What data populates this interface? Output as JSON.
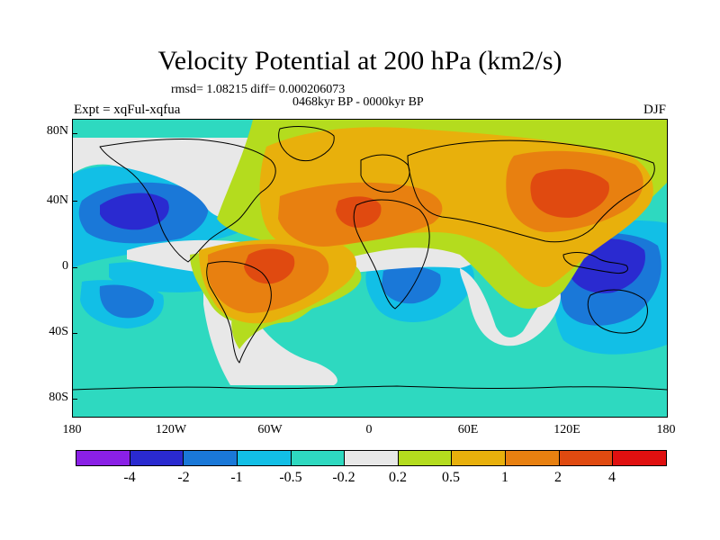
{
  "title": "Velocity Potential at 200 hPa (km2/s)",
  "stats": "rmsd= 1.08215 diff= 0.000206073",
  "period": "0468kyr BP - 0000kyr BP",
  "experiment": "Expt = xqFul-xqfua",
  "season": "DJF",
  "lat_labels": [
    "80N",
    "40N",
    "0",
    "40S",
    "80S"
  ],
  "lon_labels": [
    "180",
    "120W",
    "60W",
    "0",
    "60E",
    "120E",
    "180"
  ],
  "colorbar": {
    "colors": [
      "#8a20e6",
      "#2a2ad0",
      "#1a78d8",
      "#12bfe6",
      "#2ed9c0",
      "#e8e8e8",
      "#b4dc1e",
      "#e8b00c",
      "#e88010",
      "#e04a10",
      "#e01010"
    ],
    "labels": [
      "-4",
      "-2",
      "-1",
      "-0.5",
      "-0.2",
      "0.2",
      "0.5",
      "1",
      "2",
      "4"
    ]
  },
  "map": {
    "projection": "cylindrical equidistant",
    "extent": {
      "lon": [
        -180,
        180
      ],
      "lat": [
        -90,
        90
      ]
    },
    "background_color": "#2ed9c0"
  }
}
